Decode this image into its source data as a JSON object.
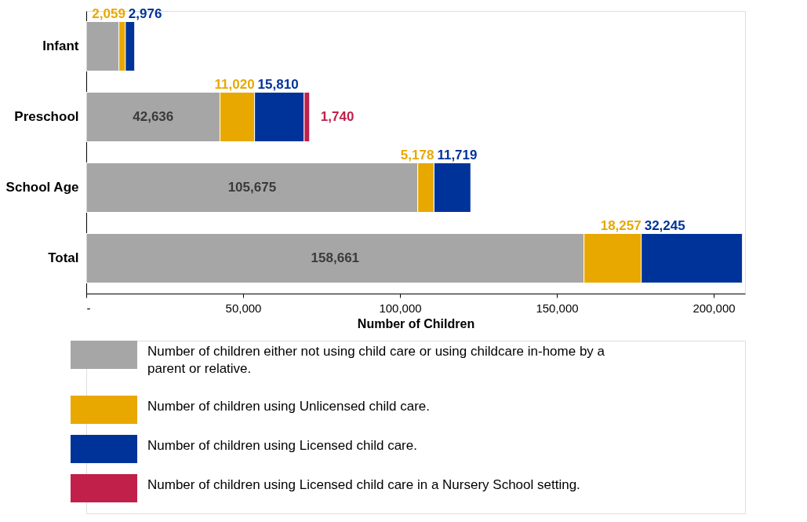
{
  "chart_data": {
    "type": "bar",
    "orientation": "horizontal",
    "stacked": true,
    "xlabel": "Number of Children",
    "categories": [
      "Infant",
      "Preschool",
      "School Age",
      "Total"
    ],
    "series": [
      {
        "name": "Number of children either not using child care or using childcare in-home by a parent or relative.",
        "color": "#a6a6a6",
        "values": [
          10400,
          42636,
          105675,
          158661
        ],
        "value_labels": [
          null,
          "42,636",
          "105,675",
          "158,661"
        ]
      },
      {
        "name": "Number of children using Unlicensed child care.",
        "color": "#e8a800",
        "values": [
          2059,
          11020,
          5178,
          18257
        ],
        "value_labels": [
          "2,059",
          "11,020",
          "5,178",
          "18,257"
        ]
      },
      {
        "name": "Number of children using Licensed child care.",
        "color": "#003399",
        "values": [
          2976,
          15810,
          11719,
          32245
        ],
        "value_labels": [
          "2,976",
          "15,810",
          "11,719",
          "32,245"
        ]
      },
      {
        "name": "Number of children using Licensed child care in a Nursery School setting.",
        "color": "#c0204a",
        "values": [
          null,
          1740,
          null,
          null
        ],
        "value_labels": [
          null,
          "1,740",
          null,
          null
        ]
      }
    ],
    "xlim": [
      0,
      210000
    ],
    "xticks": [
      {
        "value": 0,
        "label": "-"
      },
      {
        "value": 50000,
        "label": "50,000"
      },
      {
        "value": 100000,
        "label": "100,000"
      },
      {
        "value": 150000,
        "label": "150,000"
      },
      {
        "value": 200000,
        "label": "200,000"
      }
    ],
    "grid": false,
    "legend": "bottom"
  }
}
